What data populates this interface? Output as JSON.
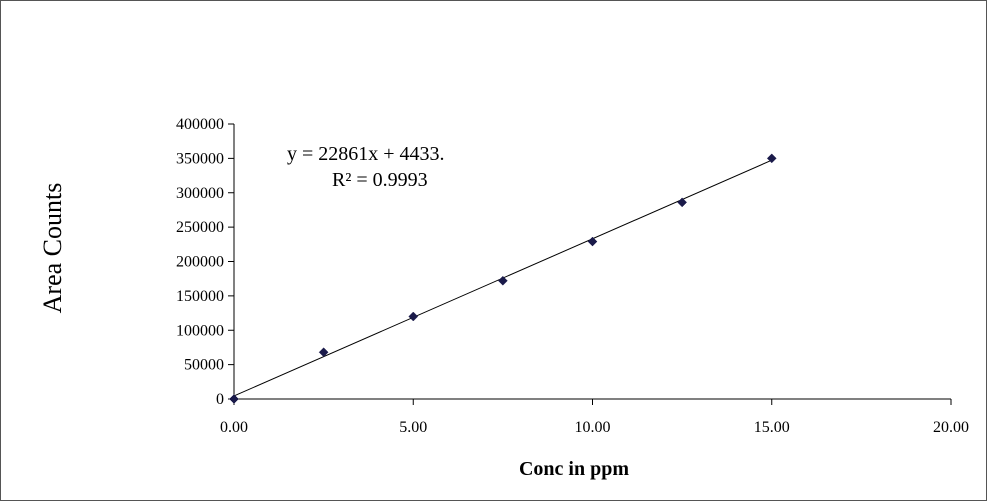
{
  "chart_data": {
    "type": "scatter",
    "title": "",
    "xlabel": "Conc in ppm",
    "ylabel": "Area Counts",
    "xlim": [
      0,
      20
    ],
    "ylim": [
      0,
      400000
    ],
    "x_ticks": [
      "0.00",
      "5.00",
      "10.00",
      "15.00",
      "20.00"
    ],
    "y_ticks": [
      "0",
      "50000",
      "100000",
      "150000",
      "200000",
      "250000",
      "300000",
      "350000",
      "400000"
    ],
    "grid": false,
    "legend": "none",
    "series": [
      {
        "points": [
          {
            "x": 0,
            "y": 0
          },
          {
            "x": 2.5,
            "y": 68000
          },
          {
            "x": 5.0,
            "y": 120000
          },
          {
            "x": 7.5,
            "y": 172000
          },
          {
            "x": 10.0,
            "y": 229000
          },
          {
            "x": 12.5,
            "y": 286000
          },
          {
            "x": 15.0,
            "y": 350000
          }
        ],
        "marker": "diamond",
        "color": "#1a1a4a"
      }
    ],
    "trendline": {
      "type": "linear",
      "slope": 22861,
      "intercept": 4433,
      "x_range": [
        0,
        15
      ],
      "color": "#000000"
    },
    "annotations": {
      "equation": "y = 22861x + 4433.",
      "r_squared": "R² = 0.9993"
    }
  }
}
